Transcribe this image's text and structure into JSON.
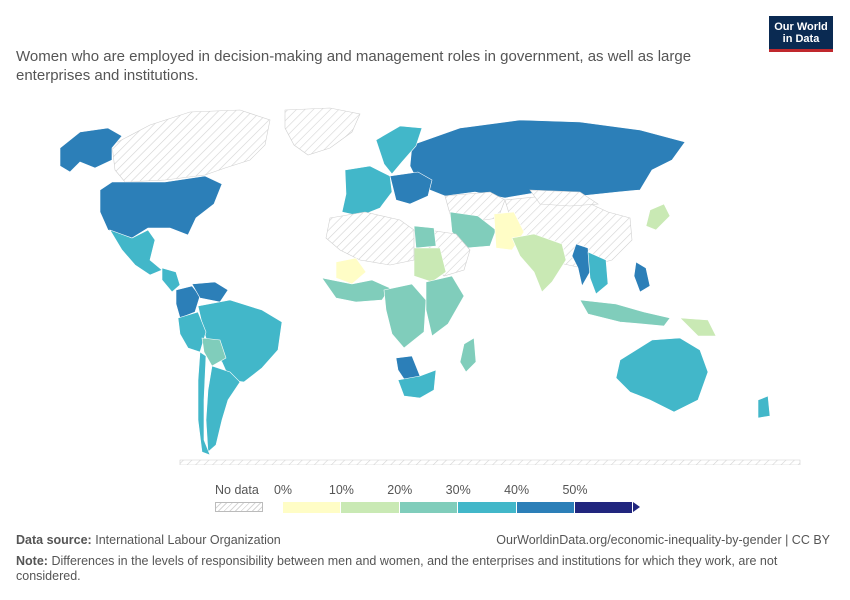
{
  "header": {
    "title": "Women who are employed in decision-making and management roles in government, as well as large enterprises and institutions.",
    "logo_line1": "Our World",
    "logo_line2": "in Data"
  },
  "legend": {
    "no_data_label": "No data",
    "ticks": [
      "0%",
      "10%",
      "20%",
      "30%",
      "40%",
      "50%"
    ],
    "colors": [
      "#fffdc6",
      "#c9e9b4",
      "#80cdbb",
      "#42b7c9",
      "#2c7fb8",
      "#21267e"
    ],
    "no_data_color": "#e6e6e6"
  },
  "footer": {
    "source_prefix": "Data source:",
    "source_text": "International Labour Organization",
    "license": "OurWorldinData.org/economic-inequality-by-gender | CC BY",
    "note_prefix": "Note:",
    "note_text": "Differences in the levels of responsibility between men and women, and the enterprises and institutions for which they work, are not considered."
  },
  "map": {
    "regions": [
      {
        "name": "Canada",
        "bin": "nodata"
      },
      {
        "name": "Alaska (US)",
        "bin": 4
      },
      {
        "name": "Greenland",
        "bin": "nodata"
      },
      {
        "name": "United States",
        "bin": 4
      },
      {
        "name": "Mexico",
        "bin": 3
      },
      {
        "name": "Central America",
        "bin": 3
      },
      {
        "name": "Colombia",
        "bin": 4
      },
      {
        "name": "Venezuela",
        "bin": 4
      },
      {
        "name": "Brazil",
        "bin": 3
      },
      {
        "name": "Peru",
        "bin": 3
      },
      {
        "name": "Bolivia",
        "bin": 2
      },
      {
        "name": "Argentina",
        "bin": 3
      },
      {
        "name": "Chile",
        "bin": 3
      },
      {
        "name": "Russia",
        "bin": 4
      },
      {
        "name": "Scandinavia",
        "bin": 3
      },
      {
        "name": "Western Europe",
        "bin": 3
      },
      {
        "name": "Eastern Europe",
        "bin": 4
      },
      {
        "name": "Kazakhstan",
        "bin": "nodata"
      },
      {
        "name": "China",
        "bin": "nodata"
      },
      {
        "name": "Mongolia",
        "bin": "nodata"
      },
      {
        "name": "Iran",
        "bin": 2
      },
      {
        "name": "Pakistan",
        "bin": 0
      },
      {
        "name": "India",
        "bin": 1
      },
      {
        "name": "Saudi Arabia",
        "bin": "nodata"
      },
      {
        "name": "Egypt",
        "bin": 2
      },
      {
        "name": "Sudan",
        "bin": 1
      },
      {
        "name": "North Africa",
        "bin": "nodata"
      },
      {
        "name": "Mali",
        "bin": 0
      },
      {
        "name": "West Africa",
        "bin": 2
      },
      {
        "name": "Central Africa",
        "bin": 2
      },
      {
        "name": "East Africa",
        "bin": 2
      },
      {
        "name": "Namibia",
        "bin": 4
      },
      {
        "name": "South Africa",
        "bin": 3
      },
      {
        "name": "Madagascar",
        "bin": 2
      },
      {
        "name": "Myanmar",
        "bin": 4
      },
      {
        "name": "Southeast Asia",
        "bin": 3
      },
      {
        "name": "Philippines",
        "bin": 4
      },
      {
        "name": "Indonesia",
        "bin": 2
      },
      {
        "name": "Papua New Guinea",
        "bin": 1
      },
      {
        "name": "Japan",
        "bin": 1
      },
      {
        "name": "Australia",
        "bin": 3
      },
      {
        "name": "New Zealand",
        "bin": 3
      },
      {
        "name": "Antarctica",
        "bin": "nodata"
      }
    ]
  }
}
